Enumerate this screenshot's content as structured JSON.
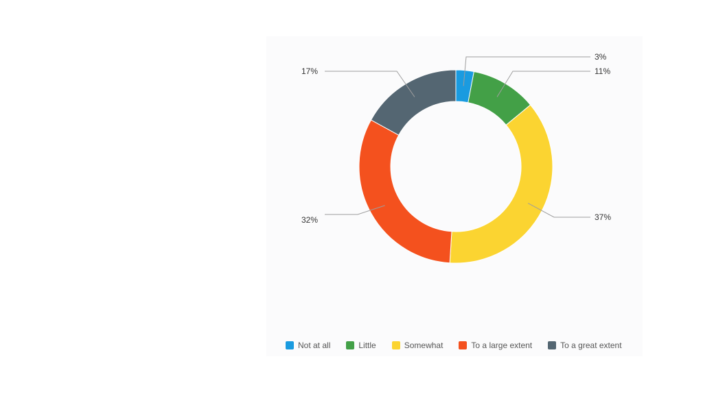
{
  "chart_data": {
    "type": "pie",
    "variant": "donut",
    "categories": [
      "Not at all",
      "Little",
      "Somewhat",
      "To a large extent",
      "To a great extent"
    ],
    "values": [
      3,
      11,
      37,
      32,
      17
    ],
    "data_labels": [
      "3%",
      "11%",
      "37%",
      "32%",
      "17%"
    ],
    "colors": [
      "#1a9be0",
      "#43a047",
      "#fbd431",
      "#f4511e",
      "#546672"
    ],
    "legend_position": "bottom",
    "title": ""
  }
}
